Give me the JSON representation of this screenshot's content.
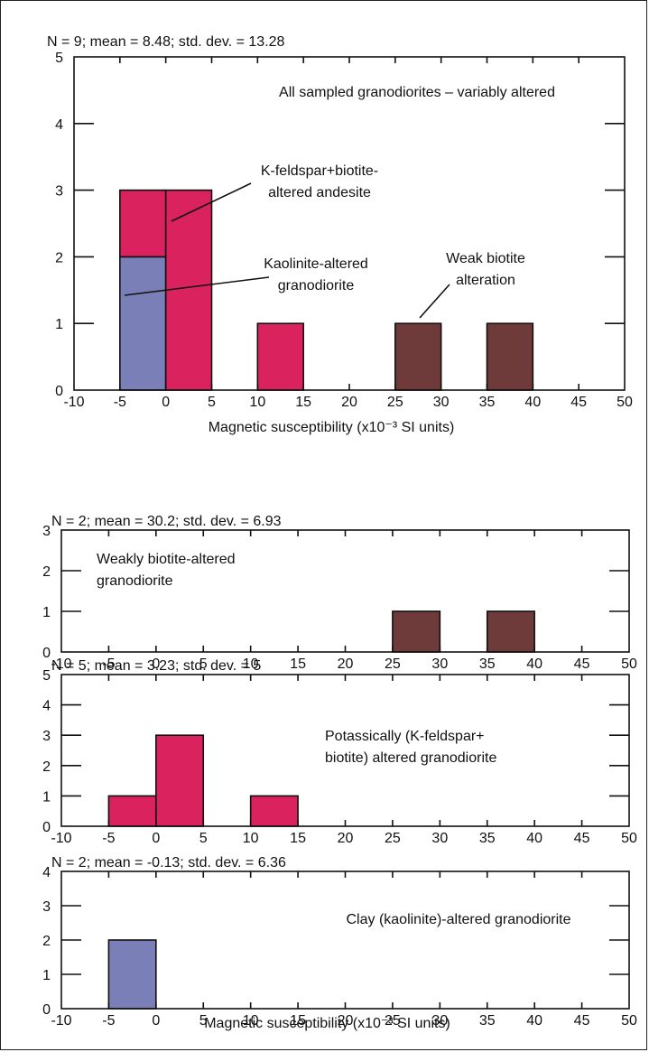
{
  "chart_data": [
    {
      "type": "bar",
      "stats": "N = 9; mean = 8.48; std. dev. = 13.28",
      "xlabel": "Magnetic susceptibility (x10⁻³ SI units)",
      "xlim": [
        -10,
        50
      ],
      "ylim": [
        0,
        5
      ],
      "xticks": [
        "-10",
        "-5",
        "0",
        "5",
        "10",
        "15",
        "20",
        "25",
        "30",
        "35",
        "40",
        "45",
        "50"
      ],
      "yticks": [
        "0",
        "1",
        "2",
        "3",
        "4",
        "5"
      ],
      "annotations": [
        "All sampled granodiorites – variably altered",
        "K-feldspar+biotite-",
        "altered andesite",
        "Kaolinite-altered",
        "granodiorite",
        "Weak biotite",
        "alteration"
      ],
      "bars": [
        {
          "x0": -5,
          "x1": 0,
          "y0": 0,
          "y1": 2,
          "color": "#7b7fb8"
        },
        {
          "x0": -5,
          "x1": 0,
          "y0": 2,
          "y1": 3,
          "color": "#d9225e"
        },
        {
          "x0": 0,
          "x1": 5,
          "y0": 0,
          "y1": 3,
          "color": "#d9225e"
        },
        {
          "x0": 10,
          "x1": 15,
          "y0": 0,
          "y1": 1,
          "color": "#d9225e"
        },
        {
          "x0": 25,
          "x1": 30,
          "y0": 0,
          "y1": 1,
          "color": "#6e3a3a"
        },
        {
          "x0": 35,
          "x1": 40,
          "y0": 0,
          "y1": 1,
          "color": "#6e3a3a"
        }
      ]
    },
    {
      "type": "bar",
      "stats": "N = 2; mean = 30.2; std. dev. = 6.93",
      "xlabel": "",
      "xlim": [
        -10,
        50
      ],
      "ylim": [
        0,
        3
      ],
      "xticks": [
        "-10",
        "-5",
        "0",
        "5",
        "10",
        "15",
        "20",
        "25",
        "30",
        "35",
        "40",
        "45",
        "50"
      ],
      "yticks": [
        "0",
        "1",
        "2",
        "3"
      ],
      "annotations": [
        "Weakly biotite-altered",
        "granodiorite"
      ],
      "bars": [
        {
          "x0": 25,
          "x1": 30,
          "y0": 0,
          "y1": 1,
          "color": "#6e3a3a"
        },
        {
          "x0": 35,
          "x1": 40,
          "y0": 0,
          "y1": 1,
          "color": "#6e3a3a"
        }
      ]
    },
    {
      "type": "bar",
      "stats": "N = 5; mean = 3.23; std. dev. = 5",
      "xlabel": "",
      "xlim": [
        -10,
        50
      ],
      "ylim": [
        0,
        5
      ],
      "xticks": [
        "-10",
        "-5",
        "0",
        "5",
        "10",
        "15",
        "20",
        "25",
        "30",
        "35",
        "40",
        "45",
        "50"
      ],
      "yticks": [
        "0",
        "1",
        "2",
        "3",
        "4",
        "5"
      ],
      "annotations": [
        "Potassically (K-feldspar+",
        "biotite) altered granodiorite"
      ],
      "bars": [
        {
          "x0": -5,
          "x1": 0,
          "y0": 0,
          "y1": 1,
          "color": "#d9225e"
        },
        {
          "x0": 0,
          "x1": 5,
          "y0": 0,
          "y1": 3,
          "color": "#d9225e"
        },
        {
          "x0": 10,
          "x1": 15,
          "y0": 0,
          "y1": 1,
          "color": "#d9225e"
        }
      ]
    },
    {
      "type": "bar",
      "stats": "N = 2; mean = -0.13; std. dev. = 6.36",
      "xlabel": "Magnetic susceptibility (x10⁻³ SI units)",
      "xlim": [
        -10,
        50
      ],
      "ylim": [
        0,
        4
      ],
      "xticks": [
        "-10",
        "-5",
        "0",
        "5",
        "10",
        "15",
        "20",
        "25",
        "30",
        "35",
        "40",
        "45",
        "50"
      ],
      "yticks": [
        "0",
        "1",
        "2",
        "3",
        "4"
      ],
      "annotations": [
        "Clay (kaolinite)-altered granodiorite"
      ],
      "bars": [
        {
          "x0": -5,
          "x1": 0,
          "y0": 0,
          "y1": 2,
          "color": "#7b7fb8"
        }
      ]
    }
  ]
}
